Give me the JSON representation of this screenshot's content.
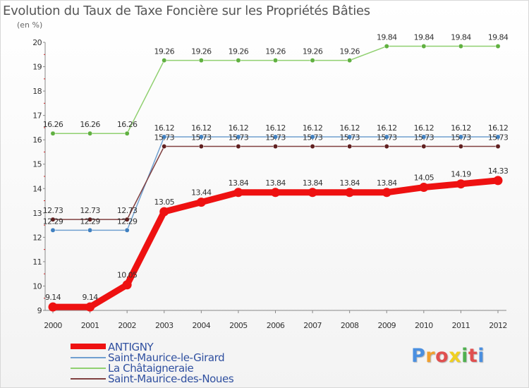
{
  "header": {
    "title": "Evolution du Taux de Taxe Foncière sur les Propriétés Bâties",
    "unit": "(en %)"
  },
  "logo": {
    "text": "Proxiti",
    "letters": [
      "P",
      "r",
      "o",
      "x",
      "i",
      "t",
      "i"
    ],
    "colors": [
      "#4a8fe0",
      "#f0a030",
      "#e05050",
      "#f0d020",
      "#50b050",
      "#e05050",
      "#4a8fe0"
    ]
  },
  "chart_data": {
    "type": "line",
    "title": "Evolution du Taux de Taxe Foncière sur les Propriétés Bâties",
    "ylabel": "(en %)",
    "xlabel": "",
    "ylim": [
      9,
      20
    ],
    "yticks": [
      9,
      10,
      11,
      12,
      13,
      14,
      15,
      16,
      17,
      18,
      19,
      20
    ],
    "grid": false,
    "legend_position": "bottom-left",
    "x": [
      "2000",
      "2001",
      "2002",
      "2003",
      "2004",
      "2005",
      "2006",
      "2007",
      "2008",
      "2009",
      "2010",
      "2011",
      "2012"
    ],
    "series": [
      {
        "name": "La Châtaigneraie",
        "color": "#90d070",
        "marker": "#60b040",
        "values": [
          16.26,
          16.26,
          16.26,
          19.26,
          19.26,
          19.26,
          19.26,
          19.26,
          19.26,
          19.84,
          19.84,
          19.84,
          19.84
        ],
        "labels": [
          "16.26",
          "16.26",
          "16.26",
          "19.26",
          "19.26",
          "19.26",
          "19.26",
          "19.26",
          "19.26",
          "19.84",
          "19.84",
          "19.84",
          "19.84"
        ]
      },
      {
        "name": "Saint-Maurice-le-Girard",
        "color": "#70a0d0",
        "marker": "#4080c0",
        "values": [
          12.29,
          12.29,
          12.29,
          16.12,
          16.12,
          16.12,
          16.12,
          16.12,
          16.12,
          16.12,
          16.12,
          16.12,
          16.12
        ],
        "labels": [
          "12.29",
          "12.29",
          "12.29",
          "16.12",
          "16.12",
          "16.12",
          "16.12",
          "16.12",
          "16.12",
          "16.12",
          "16.12",
          "16.12",
          "16.12"
        ]
      },
      {
        "name": "Saint-Maurice-des-Noues",
        "color": "#804040",
        "marker": "#602020",
        "values": [
          12.73,
          12.73,
          12.73,
          15.73,
          15.73,
          15.73,
          15.73,
          15.73,
          15.73,
          15.73,
          15.73,
          15.73,
          15.73
        ],
        "labels": [
          "12.73",
          "12.73",
          "12.73",
          "15.73",
          "15.73",
          "15.73",
          "15.73",
          "15.73",
          "15.73",
          "15.73",
          "15.73",
          "15.73",
          "15.73"
        ]
      },
      {
        "name": "ANTIGNY",
        "color": "#ee1111",
        "marker": "#ee1111",
        "values": [
          9.14,
          9.14,
          10.05,
          13.05,
          13.44,
          13.84,
          13.84,
          13.84,
          13.84,
          13.84,
          14.05,
          14.19,
          14.33
        ],
        "labels": [
          "9.14",
          "9.14",
          "10.05",
          "13.05",
          "13.44",
          "13.84",
          "13.84",
          "13.84",
          "13.84",
          "13.84",
          "14.05",
          "14.19",
          "14.33"
        ]
      }
    ],
    "legend": [
      {
        "name": "ANTIGNY",
        "color": "#ee1111"
      },
      {
        "name": "Saint-Maurice-le-Girard",
        "color": "#70a0d0"
      },
      {
        "name": "La Châtaigneraie",
        "color": "#90d070"
      },
      {
        "name": "Saint-Maurice-des-Noues",
        "color": "#804040"
      }
    ]
  }
}
